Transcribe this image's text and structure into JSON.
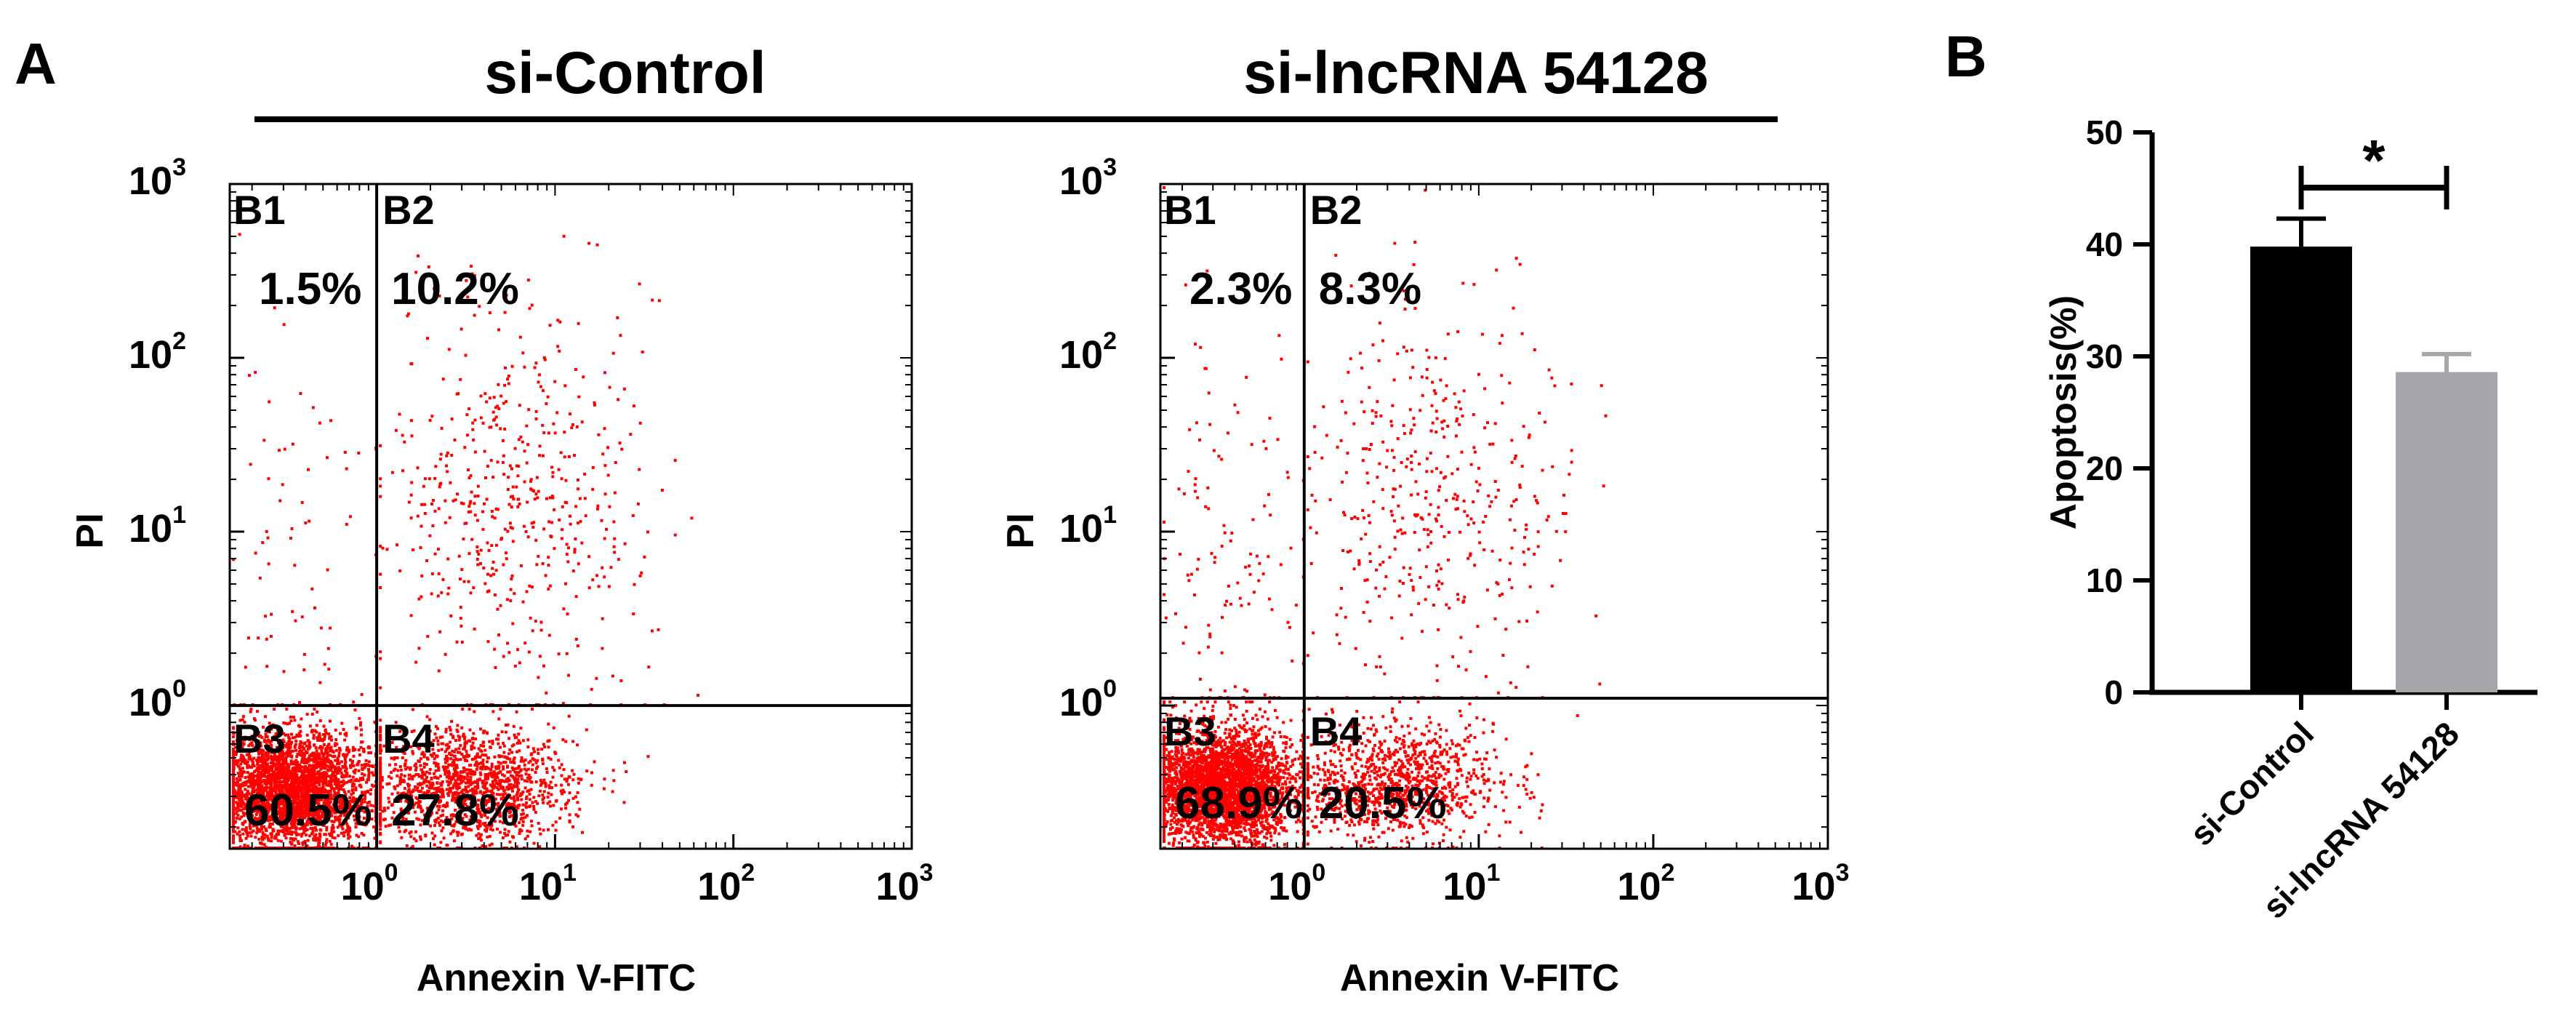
{
  "figure": {
    "panel_a_label": "A",
    "panel_b_label": "B",
    "group_titles": [
      "si-Control",
      "si-lncRNA 54128"
    ]
  },
  "chart_data": [
    {
      "type": "scatter",
      "id": "flow-si-control",
      "title": "si-Control",
      "xlabel": "Annexin V-FITC",
      "ylabel": "PI",
      "xscale": "log",
      "yscale": "log",
      "xlim": [
        0.15,
        1000
      ],
      "ylim": [
        0.15,
        1000
      ],
      "x_ticks": [
        {
          "base": "10",
          "exp": "0"
        },
        {
          "base": "10",
          "exp": "1"
        },
        {
          "base": "10",
          "exp": "2"
        },
        {
          "base": "10",
          "exp": "3"
        }
      ],
      "y_ticks": [
        {
          "base": "10",
          "exp": "0"
        },
        {
          "base": "10",
          "exp": "1"
        },
        {
          "base": "10",
          "exp": "2"
        },
        {
          "base": "10",
          "exp": "3"
        }
      ],
      "gate": {
        "x": 1,
        "y": 1
      },
      "quadrants": [
        {
          "label": "B1",
          "percent": "1.5%"
        },
        {
          "label": "B2",
          "percent": "10.2%"
        },
        {
          "label": "B3",
          "percent": "60.5%"
        },
        {
          "label": "B4",
          "percent": "27.8%"
        }
      ],
      "point_color": "#ff0000"
    },
    {
      "type": "scatter",
      "id": "flow-si-lncrna",
      "title": "si-lncRNA 54128",
      "xlabel": "Annexin V-FITC",
      "ylabel": "PI",
      "xscale": "log",
      "yscale": "log",
      "xlim": [
        0.15,
        1000
      ],
      "ylim": [
        0.15,
        1000
      ],
      "x_ticks": [
        {
          "base": "10",
          "exp": "0"
        },
        {
          "base": "10",
          "exp": "1"
        },
        {
          "base": "10",
          "exp": "2"
        },
        {
          "base": "10",
          "exp": "3"
        }
      ],
      "y_ticks": [
        {
          "base": "10",
          "exp": "0"
        },
        {
          "base": "10",
          "exp": "1"
        },
        {
          "base": "10",
          "exp": "2"
        },
        {
          "base": "10",
          "exp": "3"
        }
      ],
      "gate": {
        "x": 1,
        "y": 1.1
      },
      "quadrants": [
        {
          "label": "B1",
          "percent": "2.3%"
        },
        {
          "label": "B2",
          "percent": "8.3%"
        },
        {
          "label": "B3",
          "percent": "68.9%"
        },
        {
          "label": "B4",
          "percent": "20.5%"
        }
      ],
      "point_color": "#ff0000"
    },
    {
      "type": "bar",
      "id": "apoptosis-bar",
      "categories": [
        "si-Control",
        "si-lncRNA 54128"
      ],
      "values": [
        39.8,
        28.6
      ],
      "errors": [
        2.5,
        1.6
      ],
      "colors": [
        "#000000",
        "#a6a6ab"
      ],
      "ylabel": "Apoptosis(%)",
      "ylim": [
        0,
        50
      ],
      "yticks": [
        0,
        10,
        20,
        30,
        40,
        50
      ],
      "significance": "*"
    }
  ]
}
